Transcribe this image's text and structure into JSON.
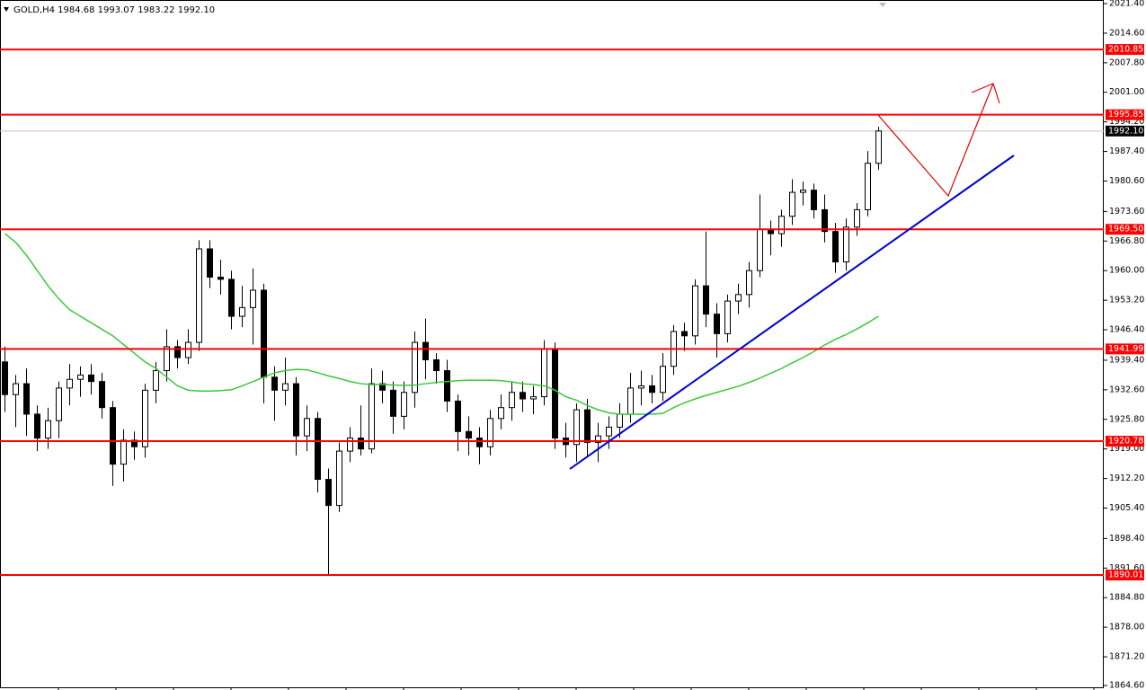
{
  "chart_data": {
    "type": "candlestick",
    "title": "GOLD,H4  1984.68 1993.07 1983.22 1992.10",
    "ylim": [
      1864.6,
      2021.4
    ],
    "yticks": [
      {
        "value": 2021.4,
        "label": "2021.40"
      },
      {
        "value": 2014.6,
        "label": "2014.60"
      },
      {
        "value": 2007.8,
        "label": "2007.80"
      },
      {
        "value": 2001,
        "label": "2001.00"
      },
      {
        "value": 1994.2,
        "label": "1994.20"
      },
      {
        "value": 1987.4,
        "label": "1987.40"
      },
      {
        "value": 1980.6,
        "label": "1980.60"
      },
      {
        "value": 1973.6,
        "label": "1973.60"
      },
      {
        "value": 1966.8,
        "label": "1966.80"
      },
      {
        "value": 1960,
        "label": "1960.00"
      },
      {
        "value": 1953.2,
        "label": "1953.20"
      },
      {
        "value": 1946.4,
        "label": "1946.40"
      },
      {
        "value": 1939.4,
        "label": "1939.40"
      },
      {
        "value": 1932.6,
        "label": "1932.60"
      },
      {
        "value": 1925.8,
        "label": "1925.80"
      },
      {
        "value": 1919,
        "label": "1919.00"
      },
      {
        "value": 1912.2,
        "label": "1912.20"
      },
      {
        "value": 1905.4,
        "label": "1905.40"
      },
      {
        "value": 1898.4,
        "label": "1898.40"
      },
      {
        "value": 1891.6,
        "label": "1891.60"
      },
      {
        "value": 1884.8,
        "label": "1884.80"
      },
      {
        "value": 1878,
        "label": "1878.00"
      },
      {
        "value": 1871.2,
        "label": "1871.20"
      },
      {
        "value": 1864.6,
        "label": "1864.60"
      }
    ],
    "grid": false,
    "bull_color": "#ffffff",
    "bear_color": "#000000",
    "candles": [
      [
        1939.0,
        1942.5,
        1927.5,
        1931.5
      ],
      [
        1931.5,
        1936.0,
        1924.0,
        1934.0
      ],
      [
        1934.0,
        1937.5,
        1922.0,
        1927.0
      ],
      [
        1927.0,
        1929.0,
        1918.5,
        1921.5
      ],
      [
        1921.5,
        1928.5,
        1919.0,
        1925.5
      ],
      [
        1925.5,
        1934.5,
        1921.5,
        1933.0
      ],
      [
        1933.0,
        1938.5,
        1929.0,
        1935.0
      ],
      [
        1935.0,
        1938.0,
        1931.0,
        1936.0
      ],
      [
        1936.0,
        1938.5,
        1931.5,
        1934.5
      ],
      [
        1934.5,
        1936.5,
        1926.0,
        1928.5
      ],
      [
        1928.5,
        1930.0,
        1910.5,
        1915.5
      ],
      [
        1915.5,
        1923.5,
        1911.5,
        1921.0
      ],
      [
        1921.0,
        1923.0,
        1916.5,
        1919.5
      ],
      [
        1919.5,
        1934.0,
        1917.0,
        1932.5
      ],
      [
        1932.5,
        1939.0,
        1929.5,
        1937.0
      ],
      [
        1937.0,
        1946.5,
        1934.5,
        1942.5
      ],
      [
        1942.5,
        1944.0,
        1937.5,
        1940.0
      ],
      [
        1940.0,
        1946.5,
        1938.5,
        1943.5
      ],
      [
        1943.5,
        1967.0,
        1941.5,
        1965.0
      ],
      [
        1965.0,
        1967.0,
        1956.0,
        1958.5
      ],
      [
        1958.5,
        1962.5,
        1954.5,
        1958.0
      ],
      [
        1958.0,
        1960.0,
        1946.5,
        1949.5
      ],
      [
        1949.5,
        1956.5,
        1947.0,
        1951.5
      ],
      [
        1951.5,
        1960.5,
        1943.0,
        1955.5
      ],
      [
        1955.5,
        1957.0,
        1929.5,
        1935.5
      ],
      [
        1935.5,
        1938.0,
        1925.5,
        1932.5
      ],
      [
        1932.5,
        1940.0,
        1929.0,
        1934.0
      ],
      [
        1934.0,
        1935.5,
        1917.5,
        1922.0
      ],
      [
        1922.0,
        1929.0,
        1918.5,
        1926.0
      ],
      [
        1926.0,
        1927.5,
        1909.0,
        1912.0
      ],
      [
        1912.0,
        1914.5,
        1890.0,
        1906.0
      ],
      [
        1906.0,
        1920.5,
        1904.5,
        1918.5
      ],
      [
        1918.5,
        1924.0,
        1916.0,
        1921.5
      ],
      [
        1921.5,
        1929.0,
        1917.5,
        1919.0
      ],
      [
        1919.0,
        1937.5,
        1918.0,
        1934.0
      ],
      [
        1934.0,
        1937.0,
        1929.5,
        1932.5
      ],
      [
        1932.5,
        1934.5,
        1922.5,
        1926.5
      ],
      [
        1926.5,
        1934.5,
        1923.5,
        1932.0
      ],
      [
        1932.0,
        1946.0,
        1928.5,
        1943.5
      ],
      [
        1943.5,
        1949.0,
        1935.0,
        1939.5
      ],
      [
        1939.5,
        1941.0,
        1934.0,
        1937.0
      ],
      [
        1937.0,
        1939.5,
        1927.5,
        1930.0
      ],
      [
        1930.0,
        1931.5,
        1918.5,
        1923.0
      ],
      [
        1923.0,
        1926.5,
        1917.5,
        1921.5
      ],
      [
        1921.5,
        1924.0,
        1915.5,
        1919.5
      ],
      [
        1919.5,
        1928.0,
        1917.5,
        1926.0
      ],
      [
        1926.0,
        1931.5,
        1923.5,
        1928.5
      ],
      [
        1928.5,
        1934.5,
        1925.5,
        1932.0
      ],
      [
        1932.0,
        1934.5,
        1927.5,
        1930.5
      ],
      [
        1930.5,
        1933.5,
        1927.0,
        1931.0
      ],
      [
        1931.0,
        1944.0,
        1929.0,
        1942.0
      ],
      [
        1942.0,
        1943.5,
        1919.0,
        1921.5
      ],
      [
        1921.5,
        1925.0,
        1917.0,
        1920.0
      ],
      [
        1920.0,
        1929.5,
        1916.0,
        1928.0
      ],
      [
        1928.0,
        1930.5,
        1917.0,
        1920.5
      ],
      [
        1920.5,
        1925.0,
        1916.0,
        1922.0
      ],
      [
        1922.0,
        1926.5,
        1919.0,
        1924.0
      ],
      [
        1924.0,
        1929.5,
        1921.5,
        1927.0
      ],
      [
        1927.0,
        1936.5,
        1925.0,
        1933.0
      ],
      [
        1933.0,
        1937.0,
        1929.0,
        1933.5
      ],
      [
        1933.5,
        1936.0,
        1929.5,
        1932.0
      ],
      [
        1932.0,
        1941.0,
        1930.0,
        1938.0
      ],
      [
        1938.0,
        1947.5,
        1936.0,
        1946.0
      ],
      [
        1946.0,
        1948.0,
        1941.5,
        1945.0
      ],
      [
        1945.0,
        1958.0,
        1943.0,
        1956.5
      ],
      [
        1956.5,
        1969.0,
        1947.0,
        1950.0
      ],
      [
        1950.0,
        1952.5,
        1940.0,
        1945.5
      ],
      [
        1945.5,
        1954.5,
        1943.5,
        1953.0
      ],
      [
        1953.0,
        1957.0,
        1950.0,
        1954.5
      ],
      [
        1954.5,
        1962.0,
        1951.5,
        1960.0
      ],
      [
        1960.0,
        1977.5,
        1958.5,
        1969.5
      ],
      [
        1969.5,
        1971.5,
        1963.5,
        1968.5
      ],
      [
        1968.5,
        1974.0,
        1965.5,
        1972.5
      ],
      [
        1972.5,
        1981.0,
        1970.5,
        1978.0
      ],
      [
        1978.0,
        1980.5,
        1975.0,
        1978.5
      ],
      [
        1978.5,
        1980.0,
        1972.0,
        1974.0
      ],
      [
        1974.0,
        1977.5,
        1966.5,
        1969.0
      ],
      [
        1969.0,
        1971.0,
        1959.5,
        1962.0
      ],
      [
        1962.0,
        1972.0,
        1960.0,
        1970.0
      ],
      [
        1970.0,
        1975.5,
        1968.0,
        1974.0
      ],
      [
        1974.0,
        1987.5,
        1972.5,
        1984.68
      ],
      [
        1984.68,
        1993.07,
        1983.22,
        1992.1
      ]
    ],
    "ma": {
      "color": "#3cc83c",
      "values": [
        1968.5,
        1966.5,
        1963.5,
        1960,
        1956.5,
        1953.5,
        1951,
        1949.5,
        1948,
        1946.5,
        1945,
        1943,
        1941,
        1939,
        1937.5,
        1935.5,
        1933.5,
        1932.5,
        1932.3,
        1932.3,
        1932.4,
        1932.6,
        1933.5,
        1934.5,
        1935.5,
        1936.5,
        1937,
        1937.3,
        1937.2,
        1936.5,
        1935.8,
        1935.2,
        1934.5,
        1934,
        1933.8,
        1933.8,
        1933.7,
        1933.6,
        1933.7,
        1934,
        1934.3,
        1934.5,
        1934.7,
        1934.8,
        1934.8,
        1934.8,
        1934.7,
        1934.4,
        1934,
        1933.8,
        1933.5,
        1932.5,
        1931,
        1930.2,
        1929,
        1928,
        1927.3,
        1927,
        1927,
        1927,
        1927,
        1927.2,
        1928.5,
        1929.6,
        1930.5,
        1931.3,
        1932,
        1932.7,
        1933.4,
        1934.3,
        1935.3,
        1936.4,
        1937.5,
        1938.8,
        1940,
        1941.4,
        1942.9,
        1944.2,
        1945.3,
        1946.6,
        1948,
        1949.5
      ]
    },
    "level_color": "#ff0000",
    "levels": [
      2010.85,
      1995.85,
      {
        "value": 1969.5,
        "label": "1969.50"
      },
      1941.99,
      1920.78,
      1890.01
    ],
    "last_price": {
      "value": 1992.1,
      "label": "1992.10"
    }
  }
}
